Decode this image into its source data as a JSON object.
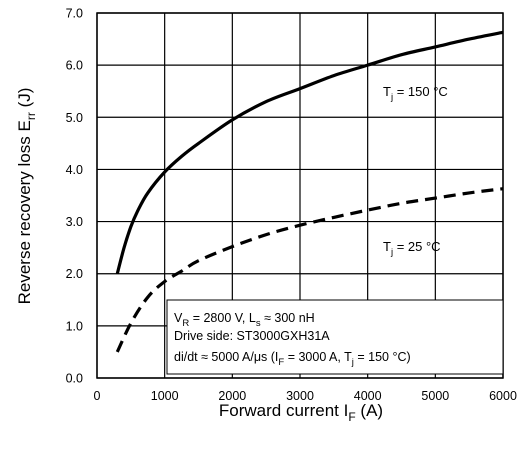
{
  "chart_data": {
    "type": "line",
    "title": "",
    "xlabel": {
      "main": "Forward current",
      "symbol": "I",
      "sub": "F",
      "unit": "(A)"
    },
    "ylabel": {
      "main": "Reverse recovery loss",
      "symbol": "E",
      "sub": "rr",
      "unit": "(J)"
    },
    "xlim": [
      0,
      6000
    ],
    "ylim": [
      0,
      7
    ],
    "x_ticks": [
      "0",
      "1000",
      "2000",
      "3000",
      "4000",
      "5000",
      "6000"
    ],
    "y_ticks": [
      "0.0",
      "1.0",
      "2.0",
      "3.0",
      "4.0",
      "5.0",
      "6.0",
      "7.0"
    ],
    "grid": true,
    "series": [
      {
        "name": "Tj = 150 °C",
        "style": "solid",
        "x": [
          300,
          400,
          500,
          600,
          750,
          1000,
          1250,
          1500,
          2000,
          2500,
          3000,
          3500,
          4000,
          4500,
          5000,
          5500,
          6000
        ],
        "y": [
          2.0,
          2.5,
          2.9,
          3.2,
          3.55,
          3.95,
          4.25,
          4.5,
          4.95,
          5.3,
          5.55,
          5.8,
          6.0,
          6.2,
          6.35,
          6.5,
          6.63
        ]
      },
      {
        "name": "Tj = 25 °C",
        "style": "dashed",
        "x": [
          300,
          500,
          750,
          1000,
          1250,
          1500,
          2000,
          2500,
          3000,
          3500,
          4000,
          4500,
          5000,
          5500,
          6000
        ],
        "y": [
          0.5,
          1.05,
          1.55,
          1.85,
          2.05,
          2.25,
          2.52,
          2.75,
          2.93,
          3.08,
          3.22,
          3.35,
          3.45,
          3.55,
          3.63
        ]
      }
    ],
    "labels": [
      {
        "symbol": "T",
        "sub": "j",
        "rest": " = 150 °C"
      },
      {
        "symbol": "T",
        "sub": "j",
        "rest": " = 25 °C"
      }
    ],
    "conditions": {
      "line1": {
        "a": "V",
        "a_sub": "R",
        "b": " = 2800 V, L",
        "b_sub": "s",
        "c": " ≈ 300 nH"
      },
      "line2": "Drive side: ST3000GXH31A",
      "line3": {
        "a": "di/dt ≈ 5000 A/μs  (I",
        "a_sub": "F",
        "b": " = 3000 A, T",
        "b_sub": "j",
        "c": " = 150 °C)"
      }
    },
    "colors": {
      "line": "#000000",
      "grid": "#000000",
      "background": "#ffffff"
    }
  }
}
